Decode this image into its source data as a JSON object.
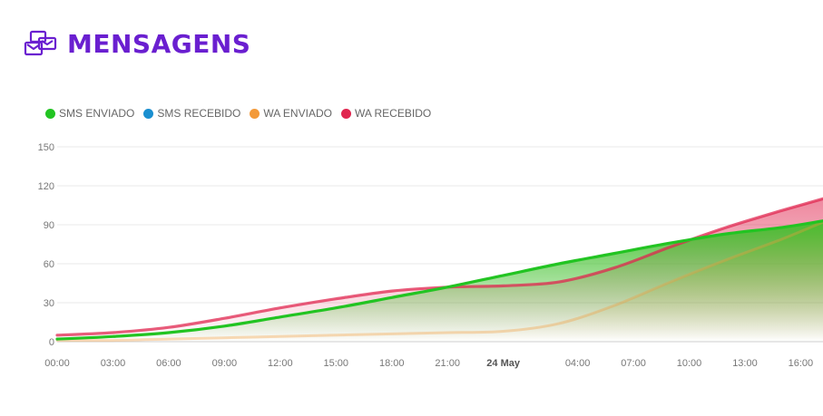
{
  "header": {
    "title": "MENSAGENS",
    "icon": "messages-icon",
    "title_color": "#6a1fd0"
  },
  "chart_data": {
    "type": "area",
    "title": "",
    "xlabel": "",
    "ylabel": "",
    "ylim": [
      0,
      150
    ],
    "yticks": [
      0,
      30,
      60,
      90,
      120,
      150
    ],
    "grid": true,
    "legend_position": "top-left",
    "x_tick_labels": [
      "00:00",
      "03:00",
      "06:00",
      "09:00",
      "12:00",
      "15:00",
      "18:00",
      "21:00",
      "24 May",
      "04:00",
      "07:00",
      "10:00",
      "13:00",
      "16:00"
    ],
    "x_tick_hours": [
      0,
      3,
      6,
      9,
      12,
      15,
      18,
      21,
      24,
      28,
      31,
      34,
      37,
      40
    ],
    "x_range_hours": [
      0,
      41.2
    ],
    "series": [
      {
        "name": "SMS ENVIADO",
        "color": "#22c422",
        "x": [
          0,
          3,
          6,
          9,
          12,
          15,
          18,
          21,
          24,
          27,
          30,
          33,
          36,
          39,
          41.2
        ],
        "values": [
          2,
          4,
          7,
          12,
          19,
          26,
          34,
          42,
          51,
          60,
          68,
          76,
          83,
          88,
          93
        ]
      },
      {
        "name": "SMS RECEBIDO",
        "color": "#1a8fd0",
        "x": [],
        "values": []
      },
      {
        "name": "WA ENVIADO",
        "color": "#f39a3a",
        "x": [
          0,
          3,
          6,
          9,
          12,
          15,
          18,
          21,
          24,
          27,
          30,
          33,
          36,
          39,
          41.2
        ],
        "values": [
          1,
          1,
          2,
          3,
          4,
          5,
          6,
          7,
          8,
          14,
          28,
          46,
          63,
          79,
          92
        ]
      },
      {
        "name": "WA RECEBIDO",
        "color": "#e0264f",
        "x": [
          0,
          3,
          6,
          9,
          12,
          15,
          18,
          21,
          24,
          27,
          30,
          33,
          36,
          39,
          41.2
        ],
        "values": [
          5,
          7,
          11,
          18,
          26,
          33,
          39,
          42,
          43,
          46,
          57,
          73,
          88,
          101,
          110
        ]
      }
    ]
  }
}
